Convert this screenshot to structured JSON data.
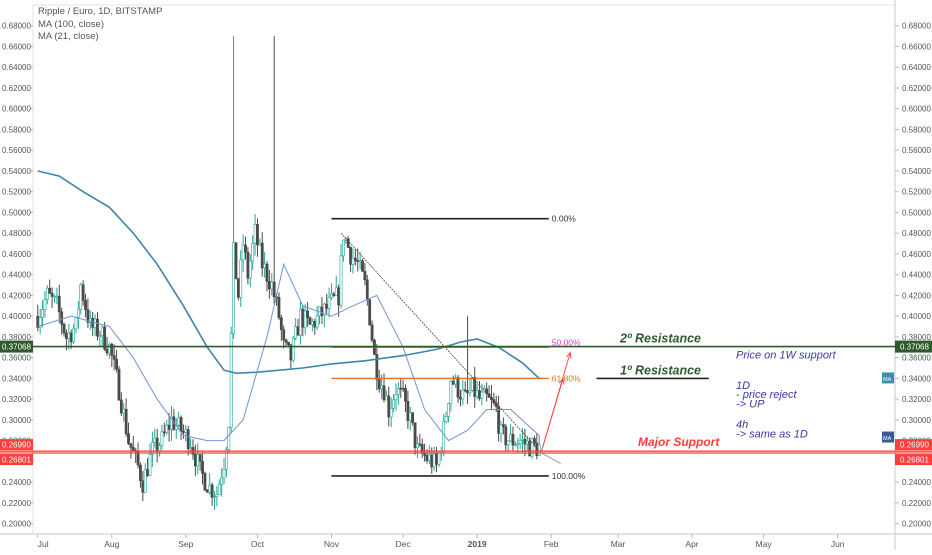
{
  "legend": {
    "symbol": "Ripple / Euro, 1D, BITSTAMP",
    "ma100": "MA (100, close)",
    "ma21": "MA (21, close)"
  },
  "colors": {
    "up": "#26a69a",
    "down": "#4a4a4a",
    "ma100": "#3d86a8",
    "ma21": "#6f95d6",
    "resistance": "#2e5a2e",
    "support": "#ff3d3d",
    "fib618": "#e07028",
    "fib50": "#e040c0",
    "annot": "#3a3aa0",
    "axis_text": "#555555"
  },
  "chart_data": {
    "type": "candlestick",
    "ylim": [
      0.19,
      0.7
    ],
    "y_ticks": [
      "0.20000",
      "0.22000",
      "0.24000",
      "0.26000",
      "0.28000",
      "0.30000",
      "0.32000",
      "0.34000",
      "0.36000",
      "0.38000",
      "0.40000",
      "0.42000",
      "0.44000",
      "0.46000",
      "0.48000",
      "0.50000",
      "0.52000",
      "0.54000",
      "0.56000",
      "0.58000",
      "0.60000",
      "0.62000",
      "0.64000",
      "0.66000",
      "0.68000"
    ],
    "x_labels": [
      "Jul",
      "Aug",
      "Sep",
      "Oct",
      "Nov",
      "Dec",
      "2019",
      "Feb",
      "Mar",
      "Apr",
      "May",
      "Jun"
    ],
    "x_label_dates": [
      "2018-07-01",
      "2018-08-01",
      "2018-09-01",
      "2018-10-01",
      "2018-11-01",
      "2018-12-01",
      "2019-01-01",
      "2019-02-01",
      "2019-03-01",
      "2019-04-01",
      "2019-05-01",
      "2019-06-01"
    ],
    "price_path": [
      [
        "2018-07-01",
        0.4
      ],
      [
        "2018-07-05",
        0.42
      ],
      [
        "2018-07-09",
        0.41
      ],
      [
        "2018-07-13",
        0.38
      ],
      [
        "2018-07-17",
        0.39
      ],
      [
        "2018-07-19",
        0.43
      ],
      [
        "2018-07-23",
        0.39
      ],
      [
        "2018-07-27",
        0.385
      ],
      [
        "2018-07-31",
        0.37
      ],
      [
        "2018-08-04",
        0.33
      ],
      [
        "2018-08-08",
        0.28
      ],
      [
        "2018-08-12",
        0.255
      ],
      [
        "2018-08-14",
        0.24
      ],
      [
        "2018-08-18",
        0.27
      ],
      [
        "2018-08-22",
        0.28
      ],
      [
        "2018-08-26",
        0.3
      ],
      [
        "2018-08-30",
        0.29
      ],
      [
        "2018-09-03",
        0.28
      ],
      [
        "2018-09-07",
        0.25
      ],
      [
        "2018-09-11",
        0.235
      ],
      [
        "2018-09-14",
        0.23
      ],
      [
        "2018-09-17",
        0.26
      ],
      [
        "2018-09-19",
        0.3
      ],
      [
        "2018-09-21",
        0.46
      ],
      [
        "2018-09-23",
        0.42
      ],
      [
        "2018-09-25",
        0.47
      ],
      [
        "2018-09-27",
        0.44
      ],
      [
        "2018-09-30",
        0.48
      ],
      [
        "2018-10-03",
        0.45
      ],
      [
        "2018-10-07",
        0.43
      ],
      [
        "2018-10-10",
        0.4
      ],
      [
        "2018-10-12",
        0.37
      ],
      [
        "2018-10-15",
        0.36
      ],
      [
        "2018-10-19",
        0.4
      ],
      [
        "2018-10-23",
        0.39
      ],
      [
        "2018-10-27",
        0.4
      ],
      [
        "2018-10-31",
        0.41
      ],
      [
        "2018-11-04",
        0.42
      ],
      [
        "2018-11-06",
        0.48
      ],
      [
        "2018-11-09",
        0.46
      ],
      [
        "2018-11-12",
        0.45
      ],
      [
        "2018-11-15",
        0.43
      ],
      [
        "2018-11-17",
        0.4
      ],
      [
        "2018-11-19",
        0.36
      ],
      [
        "2018-11-21",
        0.34
      ],
      [
        "2018-11-23",
        0.33
      ],
      [
        "2018-11-25",
        0.31
      ],
      [
        "2018-11-28",
        0.33
      ],
      [
        "2018-12-01",
        0.32
      ],
      [
        "2018-12-04",
        0.3
      ],
      [
        "2018-12-07",
        0.27
      ],
      [
        "2018-12-10",
        0.265
      ],
      [
        "2018-12-13",
        0.26
      ],
      [
        "2018-12-15",
        0.255
      ],
      [
        "2018-12-18",
        0.29
      ],
      [
        "2018-12-21",
        0.34
      ],
      [
        "2018-12-24",
        0.33
      ],
      [
        "2018-12-27",
        0.32
      ],
      [
        "2018-12-30",
        0.33
      ],
      [
        "2019-01-02",
        0.32
      ],
      [
        "2019-01-05",
        0.32
      ],
      [
        "2019-01-09",
        0.31
      ],
      [
        "2019-01-11",
        0.285
      ],
      [
        "2019-01-15",
        0.28
      ],
      [
        "2019-01-19",
        0.28
      ],
      [
        "2019-01-23",
        0.275
      ],
      [
        "2019-01-27",
        0.273
      ]
    ],
    "spikes": [
      {
        "date": "2018-09-21",
        "high": 0.67
      },
      {
        "date": "2018-10-08",
        "high": 0.67
      },
      {
        "date": "2018-12-28",
        "high": 0.4
      }
    ],
    "ma100_path": [
      [
        "2018-07-01",
        0.54
      ],
      [
        "2018-07-10",
        0.535
      ],
      [
        "2018-07-20",
        0.52
      ],
      [
        "2018-07-31",
        0.505
      ],
      [
        "2018-08-10",
        0.48
      ],
      [
        "2018-08-20",
        0.45
      ],
      [
        "2018-08-31",
        0.41
      ],
      [
        "2018-09-10",
        0.37
      ],
      [
        "2018-09-17",
        0.348
      ],
      [
        "2018-09-22",
        0.345
      ],
      [
        "2018-10-01",
        0.346
      ],
      [
        "2018-10-20",
        0.35
      ],
      [
        "2018-11-01",
        0.354
      ],
      [
        "2018-11-15",
        0.357
      ],
      [
        "2018-12-01",
        0.362
      ],
      [
        "2018-12-15",
        0.368
      ],
      [
        "2018-12-25",
        0.375
      ],
      [
        "2019-01-01",
        0.378
      ],
      [
        "2019-01-10",
        0.37
      ],
      [
        "2019-01-20",
        0.355
      ],
      [
        "2019-01-27",
        0.34
      ]
    ],
    "ma21_path": [
      [
        "2018-07-01",
        0.39
      ],
      [
        "2018-07-15",
        0.4
      ],
      [
        "2018-07-31",
        0.39
      ],
      [
        "2018-08-10",
        0.36
      ],
      [
        "2018-08-20",
        0.32
      ],
      [
        "2018-08-31",
        0.285
      ],
      [
        "2018-09-10",
        0.28
      ],
      [
        "2018-09-17",
        0.28
      ],
      [
        "2018-09-25",
        0.3
      ],
      [
        "2018-10-05",
        0.38
      ],
      [
        "2018-10-12",
        0.45
      ],
      [
        "2018-10-20",
        0.41
      ],
      [
        "2018-11-01",
        0.4
      ],
      [
        "2018-11-10",
        0.41
      ],
      [
        "2018-11-20",
        0.42
      ],
      [
        "2018-12-01",
        0.37
      ],
      [
        "2018-12-10",
        0.31
      ],
      [
        "2018-12-20",
        0.28
      ],
      [
        "2018-12-28",
        0.29
      ],
      [
        "2019-01-05",
        0.31
      ],
      [
        "2019-01-15",
        0.31
      ],
      [
        "2019-01-27",
        0.285
      ]
    ],
    "fib": {
      "level_0": {
        "label": "0.00%",
        "value": 0.494
      },
      "level_50": {
        "label": "50.00%",
        "value": 0.37
      },
      "level_618": {
        "label": "61.80%",
        "value": 0.34
      },
      "level_100": {
        "label": "100.00%",
        "value": 0.246
      },
      "start_date": "2018-11-01",
      "end_date": "2019-01-31"
    },
    "resistance_2": {
      "value": 0.37068,
      "price_label": "0.37068",
      "text": "2º Resistance"
    },
    "resistance_1": {
      "value": 0.34,
      "text": "1º Resistance"
    },
    "major_support": {
      "value_top": 0.2699,
      "value_bottom": 0.26801,
      "top_label": "0.26990",
      "bottom_label": "0.26801",
      "text": "Major Support"
    },
    "trendline": {
      "from": [
        "2018-11-05",
        0.48
      ],
      "to": [
        "2019-01-28",
        0.268
      ]
    },
    "arrows": [
      {
        "from": [
          "2019-01-28",
          0.27
        ],
        "to": [
          "2019-02-06",
          0.34
        ]
      },
      {
        "from": [
          "2019-01-28",
          0.27
        ],
        "to": [
          "2019-02-09",
          0.365
        ]
      }
    ],
    "ma_badges": [
      {
        "label": "MA",
        "value": 0.34
      },
      {
        "label": "MA",
        "value": 0.283
      }
    ]
  },
  "notes": {
    "line1": "Price on 1W support",
    "line2": "1D",
    "line3": "- price reject",
    "line4": "-> UP",
    "line5": "4h",
    "line6": "-> same as 1D"
  }
}
